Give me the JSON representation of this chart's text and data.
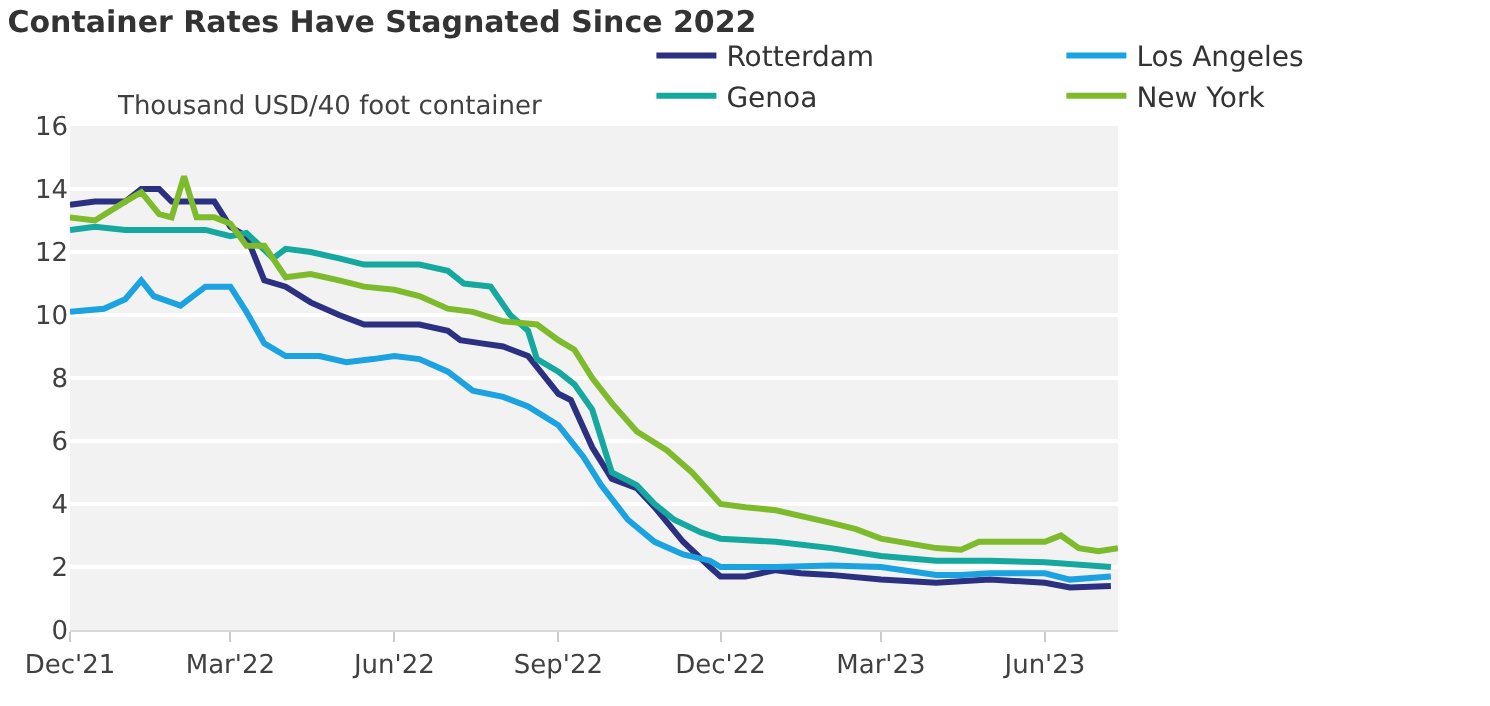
{
  "chart_data": {
    "type": "line",
    "title": "Container Rates Have Stagnated Since 2022",
    "subtitle": "Thousand USD/40 foot container",
    "series": [
      {
        "name": "Rotterdam",
        "color": "#2b3080",
        "x": [
          "2021-12-01",
          "2021-12-15",
          "2022-01-01",
          "2022-01-10",
          "2022-01-20",
          "2022-01-27",
          "2022-02-10",
          "2022-02-20",
          "2022-03-01",
          "2022-03-10",
          "2022-03-20",
          "2022-04-01",
          "2022-04-15",
          "2022-05-01",
          "2022-05-15",
          "2022-06-01",
          "2022-06-15",
          "2022-07-01",
          "2022-07-08",
          "2022-07-20",
          "2022-08-01",
          "2022-08-15",
          "2022-09-01",
          "2022-09-08",
          "2022-09-20",
          "2022-10-01",
          "2022-10-15",
          "2022-10-25",
          "2022-11-10",
          "2022-11-25",
          "2022-12-01",
          "2022-12-15",
          "2023-01-01",
          "2023-01-15",
          "2023-02-01",
          "2023-03-01",
          "2023-04-01",
          "2023-05-01",
          "2023-06-01",
          "2023-06-15",
          "2023-07-08"
        ],
        "values": [
          13.5,
          13.6,
          13.6,
          14.0,
          14.0,
          13.6,
          13.6,
          13.6,
          12.8,
          12.5,
          11.1,
          10.9,
          10.4,
          10.0,
          9.7,
          9.7,
          9.7,
          9.5,
          9.2,
          9.1,
          9.0,
          8.7,
          7.5,
          7.3,
          5.8,
          4.8,
          4.5,
          3.9,
          2.8,
          2.0,
          1.7,
          1.7,
          1.9,
          1.8,
          1.75,
          1.6,
          1.5,
          1.6,
          1.5,
          1.35,
          1.4
        ]
      },
      {
        "name": "Los Angeles",
        "color": "#1aa3e0",
        "x": [
          "2021-12-01",
          "2021-12-20",
          "2022-01-01",
          "2022-01-10",
          "2022-01-17",
          "2022-02-01",
          "2022-02-15",
          "2022-03-01",
          "2022-03-10",
          "2022-03-20",
          "2022-04-01",
          "2022-04-20",
          "2022-05-05",
          "2022-05-20",
          "2022-06-01",
          "2022-06-15",
          "2022-07-01",
          "2022-07-15",
          "2022-08-01",
          "2022-08-15",
          "2022-09-01",
          "2022-09-15",
          "2022-09-25",
          "2022-10-10",
          "2022-10-25",
          "2022-11-10",
          "2022-11-25",
          "2022-12-01",
          "2023-01-01",
          "2023-02-01",
          "2023-03-01",
          "2023-04-01",
          "2023-04-15",
          "2023-05-01",
          "2023-06-01",
          "2023-06-15",
          "2023-07-08"
        ],
        "values": [
          10.1,
          10.2,
          10.5,
          11.1,
          10.6,
          10.3,
          10.9,
          10.9,
          10.1,
          9.1,
          8.7,
          8.7,
          8.5,
          8.6,
          8.7,
          8.6,
          8.2,
          7.6,
          7.4,
          7.1,
          6.5,
          5.5,
          4.6,
          3.5,
          2.8,
          2.4,
          2.2,
          2.0,
          2.0,
          2.05,
          2.0,
          1.75,
          1.75,
          1.8,
          1.8,
          1.6,
          1.7
        ]
      },
      {
        "name": "Genoa",
        "color": "#14a89e",
        "x": [
          "2021-12-01",
          "2021-12-15",
          "2022-01-01",
          "2022-02-01",
          "2022-02-15",
          "2022-03-01",
          "2022-03-10",
          "2022-03-25",
          "2022-04-01",
          "2022-04-15",
          "2022-05-01",
          "2022-05-15",
          "2022-06-01",
          "2022-06-15",
          "2022-07-01",
          "2022-07-10",
          "2022-07-25",
          "2022-08-05",
          "2022-08-15",
          "2022-08-20",
          "2022-09-01",
          "2022-09-10",
          "2022-09-20",
          "2022-10-01",
          "2022-10-15",
          "2022-10-25",
          "2022-11-05",
          "2022-11-20",
          "2022-12-01",
          "2023-01-01",
          "2023-02-01",
          "2023-03-01",
          "2023-04-01",
          "2023-05-01",
          "2023-06-01",
          "2023-07-08"
        ],
        "values": [
          12.7,
          12.8,
          12.7,
          12.7,
          12.7,
          12.5,
          12.6,
          11.8,
          12.1,
          12.0,
          11.8,
          11.6,
          11.6,
          11.6,
          11.4,
          11.0,
          10.9,
          10.0,
          9.5,
          8.6,
          8.2,
          7.8,
          7.0,
          5.0,
          4.6,
          4.0,
          3.5,
          3.1,
          2.9,
          2.8,
          2.6,
          2.35,
          2.2,
          2.2,
          2.15,
          2.0
        ]
      },
      {
        "name": "New York",
        "color": "#7dbb2c",
        "x": [
          "2021-12-01",
          "2021-12-15",
          "2022-01-01",
          "2022-01-10",
          "2022-01-20",
          "2022-01-27",
          "2022-02-03",
          "2022-02-10",
          "2022-02-20",
          "2022-03-01",
          "2022-03-10",
          "2022-03-20",
          "2022-04-01",
          "2022-04-15",
          "2022-05-01",
          "2022-05-15",
          "2022-06-01",
          "2022-06-15",
          "2022-07-01",
          "2022-07-15",
          "2022-08-01",
          "2022-08-20",
          "2022-09-01",
          "2022-09-10",
          "2022-09-20",
          "2022-10-01",
          "2022-10-15",
          "2022-11-01",
          "2022-11-15",
          "2022-12-01",
          "2022-12-15",
          "2023-01-01",
          "2023-02-01",
          "2023-02-15",
          "2023-03-01",
          "2023-04-01",
          "2023-04-15",
          "2023-04-25",
          "2023-05-01",
          "2023-06-01",
          "2023-06-10",
          "2023-06-20",
          "2023-07-01",
          "2023-07-12"
        ],
        "values": [
          13.1,
          13.0,
          13.6,
          13.9,
          13.2,
          13.1,
          14.4,
          13.1,
          13.1,
          12.9,
          12.2,
          12.2,
          11.2,
          11.3,
          11.1,
          10.9,
          10.8,
          10.6,
          10.2,
          10.1,
          9.8,
          9.7,
          9.2,
          8.9,
          8.0,
          7.2,
          6.3,
          5.7,
          5.0,
          4.0,
          3.9,
          3.8,
          3.4,
          3.2,
          2.9,
          2.6,
          2.55,
          2.8,
          2.8,
          2.8,
          3.0,
          2.6,
          2.5,
          2.6
        ]
      }
    ],
    "xlim": [
      "2021-12-01",
      "2023-07-12"
    ],
    "xticks": [
      {
        "value": "2021-12-01",
        "label": "Dec'21"
      },
      {
        "value": "2022-03-01",
        "label": "Mar'22"
      },
      {
        "value": "2022-06-01",
        "label": "Jun'22"
      },
      {
        "value": "2022-09-01",
        "label": "Sep'22"
      },
      {
        "value": "2022-12-01",
        "label": "Dec'22"
      },
      {
        "value": "2023-03-01",
        "label": "Mar'23"
      },
      {
        "value": "2023-06-01",
        "label": "Jun'23"
      }
    ],
    "ylim": [
      0,
      16
    ],
    "yticks": [
      0,
      2,
      4,
      6,
      8,
      10,
      12,
      14,
      16
    ],
    "grid": "y",
    "legend": "top right",
    "marker": "none",
    "line_style": "solid"
  }
}
